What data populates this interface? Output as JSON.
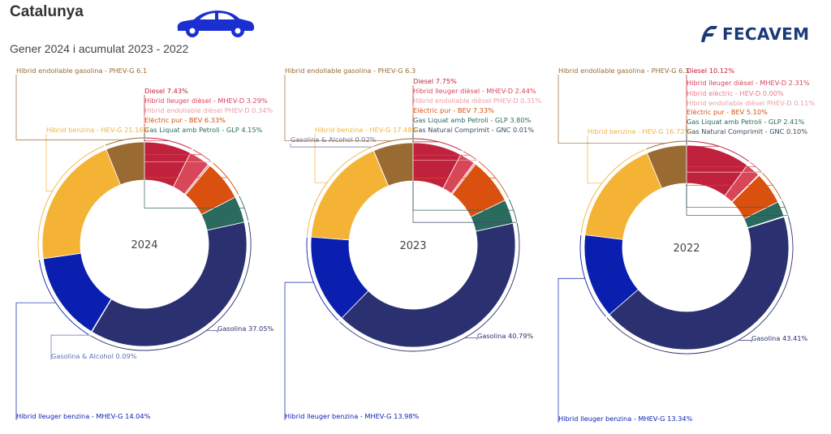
{
  "header": {
    "title": "Catalunya",
    "subtitle": "Gener 2024 i acumulat 2023 - 2022",
    "logo_text": "FECAVEM",
    "logo_letter": "F"
  },
  "colors": {
    "diesel": "#c0223d",
    "mhev_d": "#d8465a",
    "phev_d": "#e9a0a8",
    "hev_e": "#ec7a88",
    "bev": "#d9500f",
    "glp": "#2a6a5f",
    "gnc": "#3a4a60",
    "gasolina": "#2b3170",
    "alcohol": "#6070b0",
    "mhev_g": "#0a1fb0",
    "hev_g": "#f4b335",
    "phev_g": "#9a6a33",
    "car": "#1b2fd0",
    "logo": "#1a3a7a"
  },
  "chart_data": [
    {
      "type": "pie",
      "center_label": "2024",
      "slices": [
        {
          "name": "Diesel",
          "value": 7.43,
          "label": "Diesel 7.43%",
          "color": "diesel"
        },
        {
          "name": "Hibrid lleuger dièsel - MHEV-D",
          "value": 3.29,
          "label": "Hibrid lleuger dièsel - MHEV-D 3.29%",
          "color": "mhev_d"
        },
        {
          "name": "Hibrid endollable dièsel PHEV-D",
          "value": 0.34,
          "label": "Hibrid endollable dièsel PHEV-D 0.34%",
          "color": "phev_d"
        },
        {
          "name": "Elèctric pur - BEV",
          "value": 6.33,
          "label": "Elèctric pur - BEV 6.33%",
          "color": "bev"
        },
        {
          "name": "Gas Liquat amb Petroli - GLP",
          "value": 4.15,
          "label": "Gas Liquat amb Petroli - GLP 4.15%",
          "color": "glp"
        },
        {
          "name": "Gasolina",
          "value": 37.05,
          "label": "Gasolina 37.05%",
          "color": "gasolina"
        },
        {
          "name": "Gasolina & Alcohol",
          "value": 0.09,
          "label": "Gasolina & Alcohol 0.09%",
          "color": "alcohol"
        },
        {
          "name": "Hibrid lleuger benzina - MHEV-G",
          "value": 14.04,
          "label": "Hibrid lleuger benzina - MHEV-G 14.04%",
          "color": "mhev_g"
        },
        {
          "name": "Hibrid benzina - HEV-G",
          "value": 21.16,
          "label": "Hibrid benzina - HEV-G 21.16%",
          "color": "hev_g"
        },
        {
          "name": "Hibrid endollable gasolina - PHEV-G",
          "value": 6.1,
          "label": "Hibrid endollable gasolina - PHEV-G 6.1",
          "color": "phev_g"
        }
      ]
    },
    {
      "type": "pie",
      "center_label": "2023",
      "slices": [
        {
          "name": "Diesel",
          "value": 7.75,
          "label": "Diesel 7.75%",
          "color": "diesel"
        },
        {
          "name": "Hibrid lleuger dièsel - MHEV-D",
          "value": 2.44,
          "label": "Hibrid lleuger dièsel - MHEV-D 2.44%",
          "color": "mhev_d"
        },
        {
          "name": "Hibrid endollable dièsel PHEV-D",
          "value": 0.31,
          "label": "Hibrid endollable dièsel PHEV-D 0.31%",
          "color": "phev_d"
        },
        {
          "name": "Elèctric pur - BEV",
          "value": 7.33,
          "label": "Elèctric pur - BEV 7.33%",
          "color": "bev"
        },
        {
          "name": "Gas Liquat amb Petroli - GLP",
          "value": 3.8,
          "label": "Gas Liquat amb Petroli - GLP 3.80%",
          "color": "glp"
        },
        {
          "name": "Gas Natural Comprimit - GNC",
          "value": 0.01,
          "label": "Gas Natural Comprimit - GNC 0.01%",
          "color": "gnc"
        },
        {
          "name": "Gasolina",
          "value": 40.79,
          "label": "Gasolina 40.79%",
          "color": "gasolina"
        },
        {
          "name": "Hibrid lleuger benzina - MHEV-G",
          "value": 13.98,
          "label": "Hibrid lleuger benzina - MHEV-G 13.98%",
          "color": "mhev_g"
        },
        {
          "name": "Hibrid benzina - HEV-G",
          "value": 17.48,
          "label": "Hibrid benzina - HEV-G 17.48%",
          "color": "hev_g"
        },
        {
          "name": "Gasolina & Alcohol",
          "value": 0.02,
          "label": "Gasolina & Alcohol 0.02%",
          "color": "alcohol"
        },
        {
          "name": "Hibrid endollable gasolina - PHEV-G",
          "value": 6.3,
          "label": "Hibrid endollable gasolina - PHEV-G 6.3",
          "color": "phev_g"
        }
      ]
    },
    {
      "type": "pie",
      "center_label": "2022",
      "slices": [
        {
          "name": "Diesel",
          "value": 10.12,
          "label": "Diesel 10.12%",
          "color": "diesel"
        },
        {
          "name": "Hibrid lleuger dièsel - MHEV-D",
          "value": 2.31,
          "label": "Hibrid lleuger dièsel - MHEV-D 2.31%",
          "color": "mhev_d"
        },
        {
          "name": "Hibrid elèctric - HEV-D",
          "value": 0.0,
          "label": "Hibrid elèctric - HEV-D 0.00%",
          "color": "hev_e"
        },
        {
          "name": "Hibrid endollable dièsel PHEV-D",
          "value": 0.11,
          "label": "Hibrid endollable dièsel PHEV-D 0.11%",
          "color": "phev_d"
        },
        {
          "name": "Elèctric pur - BEV",
          "value": 5.1,
          "label": "Elèctric pur - BEV 5.10%",
          "color": "bev"
        },
        {
          "name": "Gas Liquat amb Petroli - GLP",
          "value": 2.41,
          "label": "Gas Liquat amb Petroli - GLP 2.41%",
          "color": "glp"
        },
        {
          "name": "Gas Natural Comprimit - GNC",
          "value": 0.1,
          "label": "Gas Natural Comprimit - GNC 0.10%",
          "color": "gnc"
        },
        {
          "name": "Gasolina",
          "value": 43.41,
          "label": "Gasolina 43.41%",
          "color": "gasolina"
        },
        {
          "name": "Hibrid lleuger benzina - MHEV-G",
          "value": 13.34,
          "label": "Hibrid lleuger benzina - MHEV-G 13.34%",
          "color": "mhev_g"
        },
        {
          "name": "Hibrid benzina - HEV-G",
          "value": 16.72,
          "label": "Hibrid benzina - HEV-G 16.72%",
          "color": "hev_g"
        },
        {
          "name": "Hibrid endollable gasolina - PHEV-G",
          "value": 6.3,
          "label": "Hibrid endollable gasolina - PHEV-G 6.3",
          "color": "phev_g"
        }
      ]
    }
  ]
}
